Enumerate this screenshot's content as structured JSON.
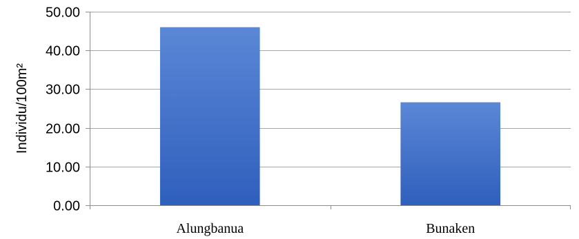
{
  "chart_data": {
    "type": "bar",
    "title": "",
    "xlabel": "",
    "ylabel": "Individu/100m²",
    "categories": [
      "Alungbanua",
      "Bunaken"
    ],
    "series": [
      {
        "values": [
          46.0,
          26.6
        ]
      }
    ],
    "ylim": [
      0,
      50
    ],
    "yticks": [
      "0.00",
      "10.00",
      "20.00",
      "30.00",
      "40.00",
      "50.00"
    ],
    "grid": true,
    "legend": "none",
    "colors": {
      "bar_top": "#5b87d6",
      "bar_bottom": "#2f5fbd"
    }
  }
}
